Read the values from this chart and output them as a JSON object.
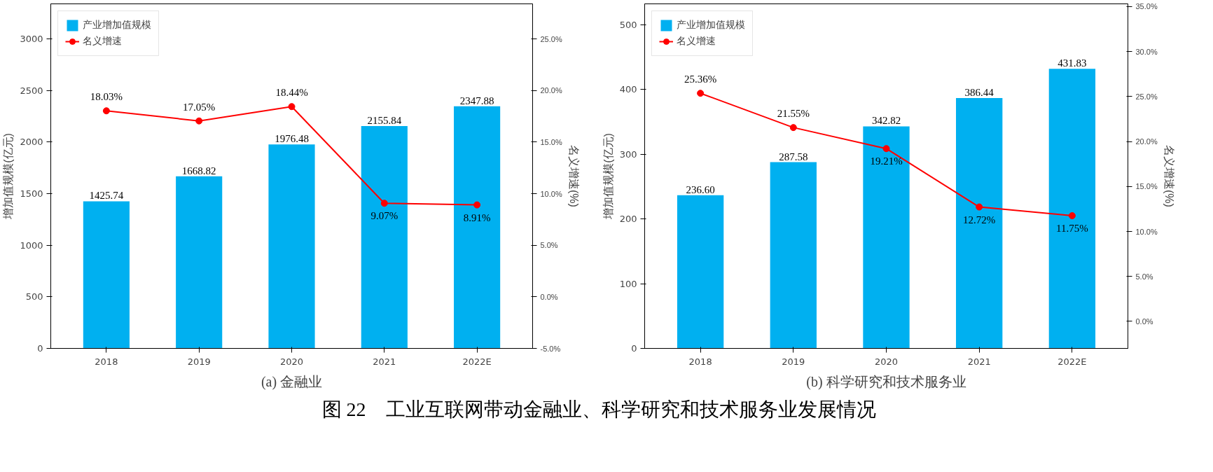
{
  "chart_data": [
    {
      "type": "bar",
      "title": "(a) 金融业",
      "xlabel": null,
      "ylabel": "增加值规模(亿元)",
      "y2label": "名义增速(%)",
      "categories": [
        "2018",
        "2019",
        "2020",
        "2021",
        "2022E"
      ],
      "series": [
        {
          "name": "产业增加值规模",
          "color": "#00b0f0",
          "values": [
            1425.74,
            1668.82,
            1976.48,
            2155.84,
            2347.88
          ]
        },
        {
          "name": "名义增速",
          "type": "line",
          "axis": "y2",
          "color": "#ff0000",
          "values": [
            18.03,
            17.05,
            18.44,
            9.07,
            8.91
          ],
          "value_labels": [
            "18.03%",
            "17.05%",
            "18.44%",
            "9.07%",
            "8.91%"
          ]
        }
      ],
      "data_labels": true,
      "ylim": [
        0,
        3340
      ],
      "yticks": [
        0,
        500,
        1000,
        1500,
        2000,
        2500,
        3000
      ],
      "y2lim": [
        -5,
        28.4
      ],
      "y2ticks": [
        {
          "value": -5,
          "label": "-5.0%"
        },
        {
          "value": 0,
          "label": "0.0%"
        },
        {
          "value": 5,
          "label": "5.0%"
        },
        {
          "value": 10,
          "label": "10.0%"
        },
        {
          "value": 15,
          "label": "15.0%"
        },
        {
          "value": 20,
          "label": "20.0%"
        },
        {
          "value": 25,
          "label": "25.0%"
        }
      ],
      "legend": "top left",
      "grid": false,
      "marker": "circle",
      "line_style": "solid",
      "annotations": [
        "图 22　工业互联网带动金融业、科学研究和技术服务业发展情况"
      ]
    },
    {
      "type": "bar",
      "title": "(b) 科学研究和技术服务业",
      "ylabel": "增加值规模(亿元)",
      "y2label": "名义增速(%)",
      "categories": [
        "2018",
        "2019",
        "2020",
        "2021",
        "2022E"
      ],
      "series": [
        {
          "name": "产业增加值规模",
          "color": "#00b0f0",
          "values": [
            236.6,
            287.58,
            342.82,
            386.44,
            431.83
          ],
          "value_labels": [
            "236.60",
            "287.58",
            "342.82",
            "386.44",
            "431.83"
          ]
        },
        {
          "name": "名义增速",
          "type": "line",
          "axis": "y2",
          "color": "#ff0000",
          "values": [
            25.36,
            21.55,
            19.21,
            12.72,
            11.75
          ],
          "value_labels": [
            "25.36%",
            "21.55%",
            "19.21%",
            "12.72%",
            "11.75%"
          ]
        }
      ],
      "data_labels": true,
      "ylim": [
        0,
        532
      ],
      "yticks": [
        0,
        100,
        200,
        300,
        400,
        500
      ],
      "y2lim": [
        -3,
        35.3
      ],
      "y2ticks": [
        {
          "value": 0,
          "label": "0.0%"
        },
        {
          "value": 5,
          "label": "5.0%"
        },
        {
          "value": 10,
          "label": "10.0%"
        },
        {
          "value": 15,
          "label": "15.0%"
        },
        {
          "value": 20,
          "label": "20.0%"
        },
        {
          "value": 25,
          "label": "25.0%"
        },
        {
          "value": 30,
          "label": "30.0%"
        },
        {
          "value": 35,
          "label": "35.0%"
        }
      ],
      "legend": "top left",
      "grid": false,
      "marker": "circle",
      "line_style": "solid"
    }
  ]
}
